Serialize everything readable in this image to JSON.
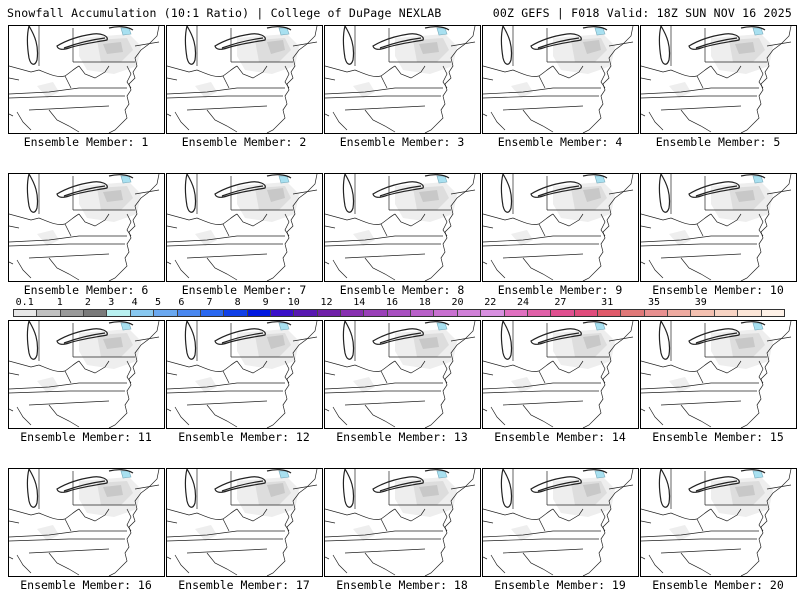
{
  "header": {
    "left": "Snowfall Accumulation (10:1 Ratio) | College of DuPage NEXLAB",
    "right": "00Z GEFS | F018 Valid: 18Z SUN NOV 16 2025"
  },
  "label_prefix": "Ensemble Member: ",
  "members": [
    "1",
    "2",
    "3",
    "4",
    "5",
    "6",
    "7",
    "8",
    "9",
    "10",
    "11",
    "12",
    "13",
    "14",
    "15",
    "16",
    "17",
    "18",
    "19",
    "20"
  ],
  "colorbar": {
    "ticks": [
      "0.1",
      "1",
      "2",
      "3",
      "4",
      "5",
      "6",
      "7",
      "8",
      "9",
      "10",
      "12",
      "14",
      "16",
      "18",
      "20",
      "22",
      "24",
      "27",
      "31",
      "35",
      "39"
    ],
    "colors": [
      "#e8e8e8",
      "#c0c0c0",
      "#9a9a9a",
      "#7a7a7a",
      "#b8f0f0",
      "#88c8f0",
      "#6aa8f0",
      "#4a88f0",
      "#2a68f0",
      "#1040e8",
      "#0018e0",
      "#3a10c8",
      "#5818b0",
      "#7020a8",
      "#8830b0",
      "#9a40b8",
      "#a850c0",
      "#b860c8",
      "#c870d0",
      "#d080d8",
      "#d890e0",
      "#e070c0",
      "#e060a8",
      "#e05090",
      "#e04c7c",
      "#e05a6a",
      "#e07878",
      "#e89090",
      "#eeaaa0",
      "#f4c0b0",
      "#f8d4c4",
      "#fce6d8",
      "#fff2e8"
    ]
  },
  "snow_levels": [
    "#eeeeee",
    "#dddddd",
    "#c8c8c8",
    "#b4b4b4",
    "#a8e0f0"
  ]
}
